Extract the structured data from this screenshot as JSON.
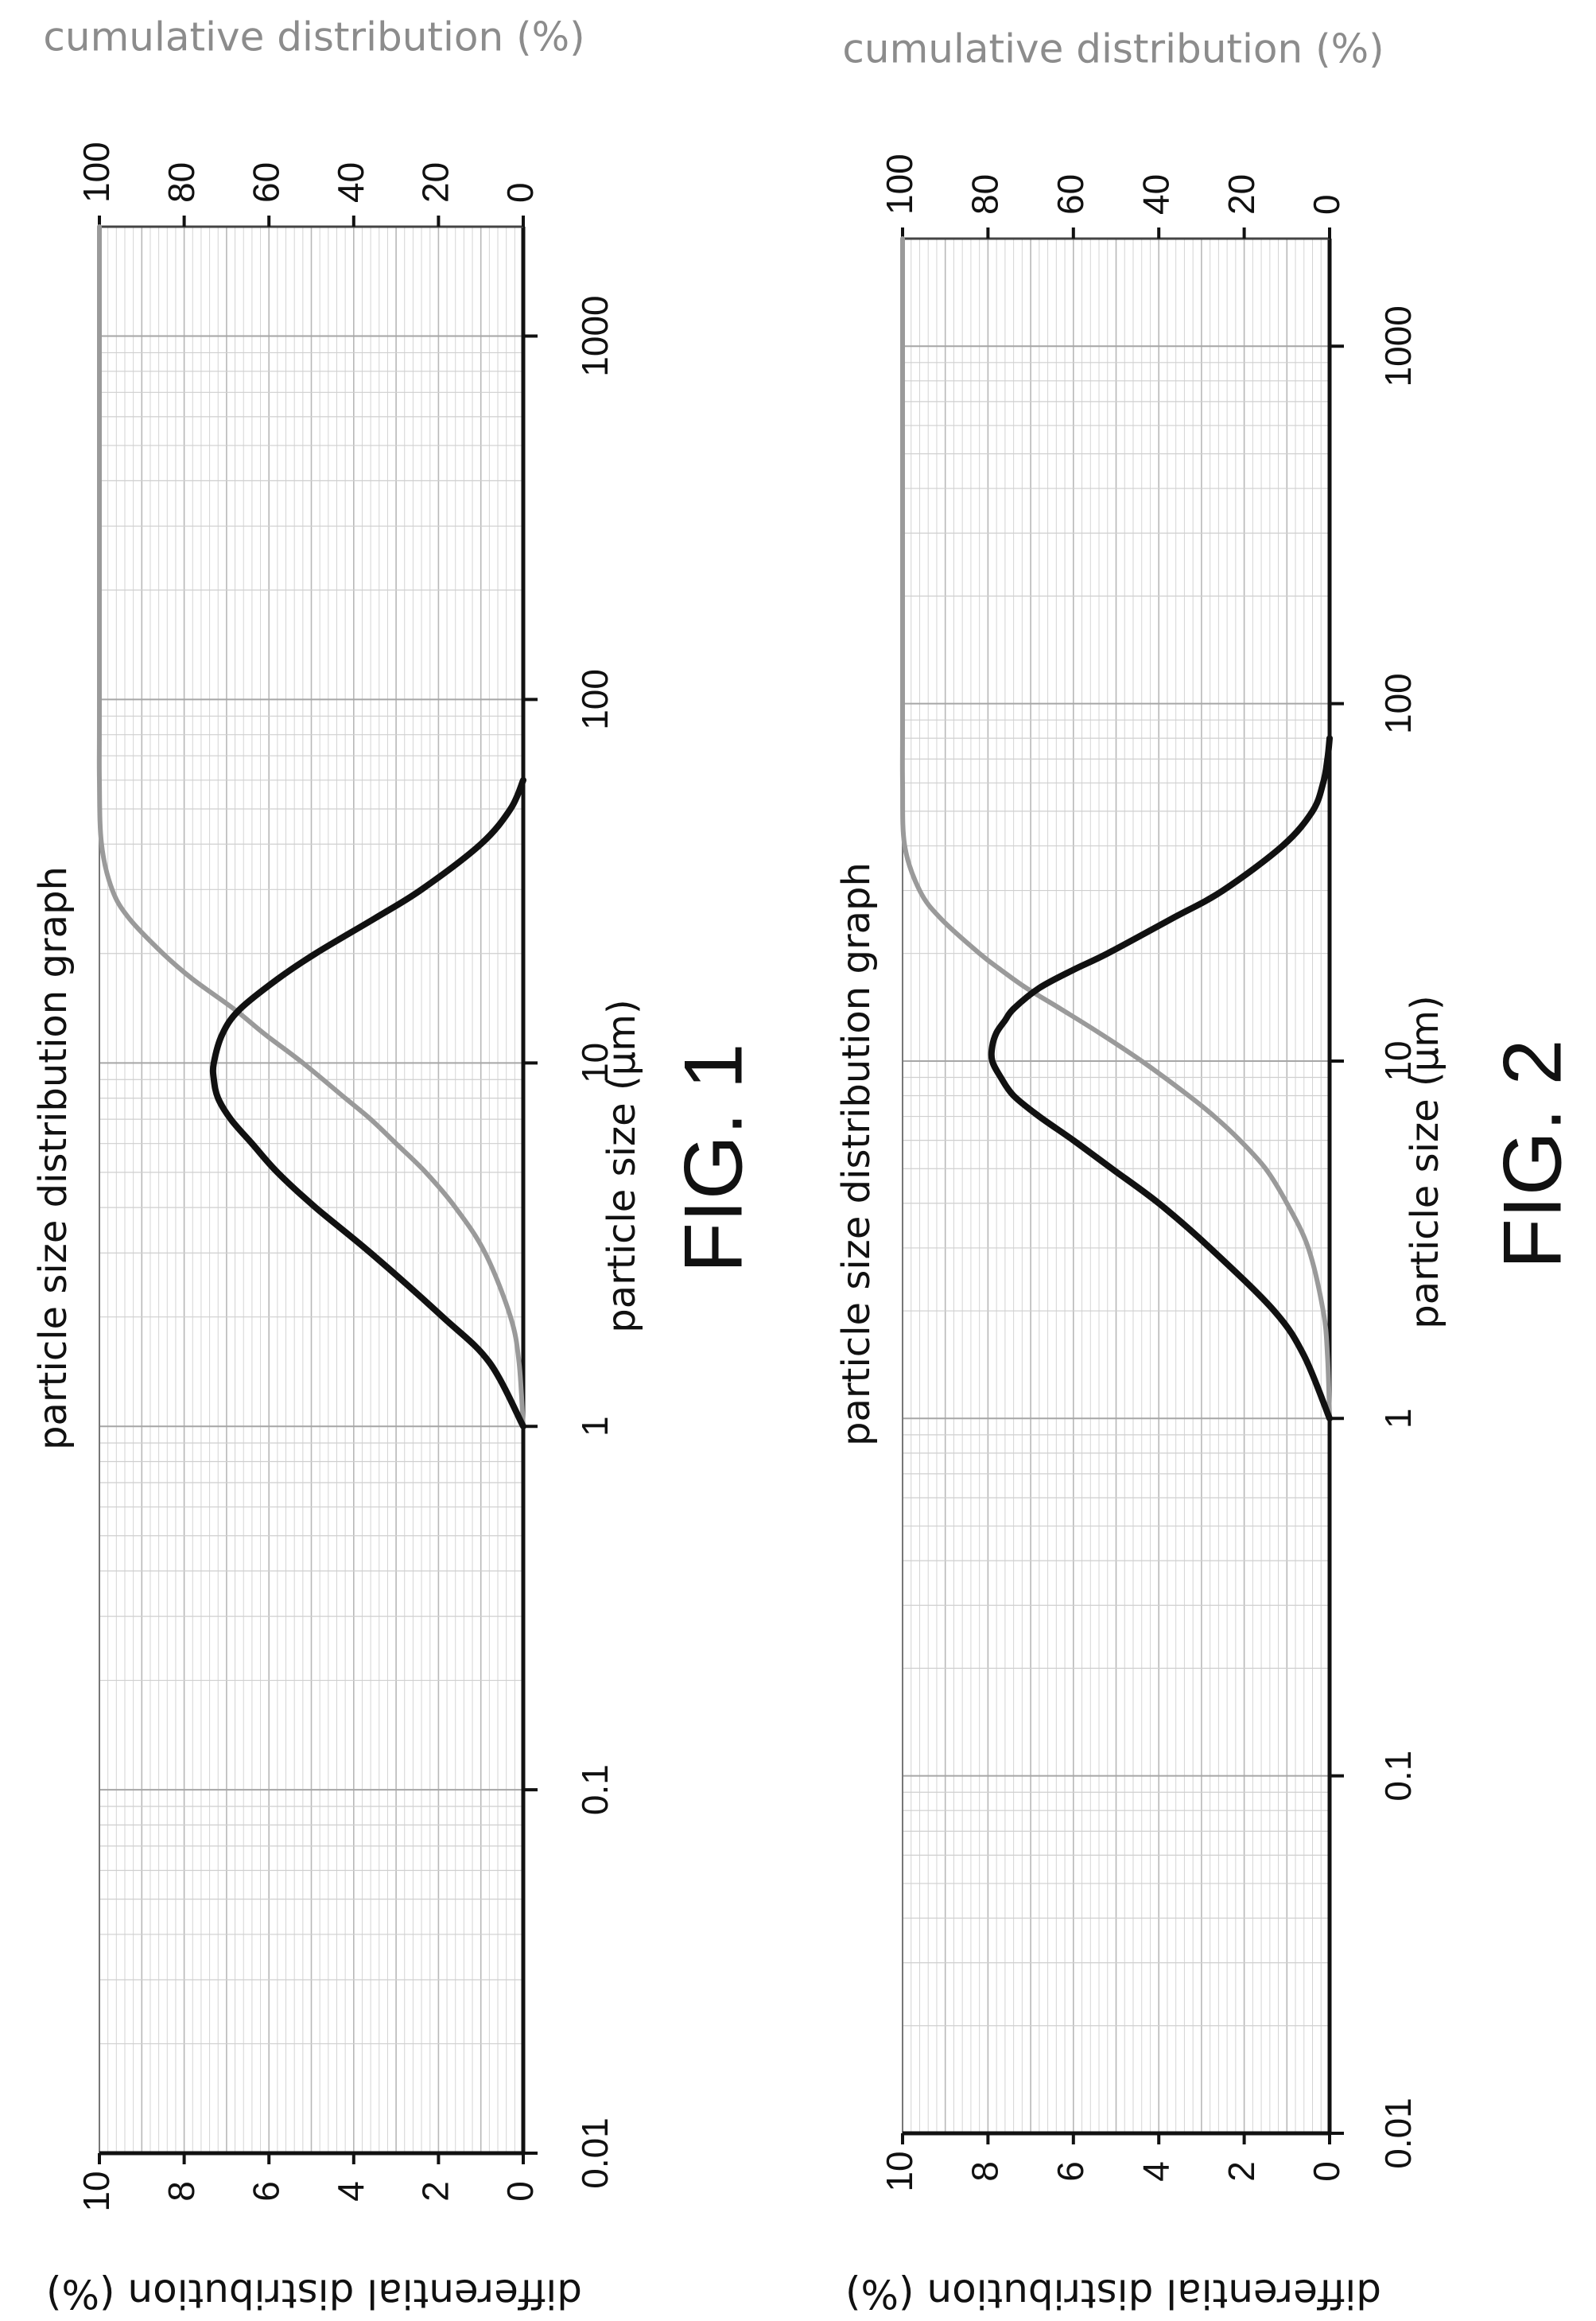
{
  "chart_data": [
    {
      "type": "line",
      "figure_label": "FIG. 1",
      "title": "particle size distribution graph",
      "xlabel": "particle size (µm)",
      "ylabel_left": "differential distribution (%)",
      "ylabel_right": "cumulative distribution (%)",
      "x_scale": "log",
      "xlim": [
        0.01,
        2000
      ],
      "x_ticks": [
        "0.01",
        "0.1",
        "1",
        "10",
        "100",
        "1000"
      ],
      "ylim_left": [
        0,
        10
      ],
      "y_ticks_left": [
        "0",
        "2",
        "4",
        "6",
        "8",
        "10"
      ],
      "ylim_right": [
        0,
        100
      ],
      "y_ticks_right": [
        "0",
        "20",
        "40",
        "60",
        "80",
        "100"
      ],
      "grid": true,
      "series": [
        {
          "axis": "left",
          "color": "#111111",
          "x": [
            1,
            1.5,
            2,
            3,
            4,
            5,
            6,
            7,
            8,
            9,
            10,
            12,
            14,
            17,
            20,
            25,
            30,
            40,
            50,
            60
          ],
          "y": [
            0,
            0.8,
            1.9,
            3.6,
            4.9,
            5.8,
            6.4,
            6.9,
            7.2,
            7.3,
            7.3,
            7.1,
            6.7,
            5.8,
            4.9,
            3.5,
            2.4,
            1.0,
            0.3,
            0
          ]
        },
        {
          "axis": "right",
          "color": "#9a9a9a",
          "x": [
            1,
            1.5,
            2,
            3,
            4,
            5,
            6,
            7,
            8,
            10,
            12,
            14,
            17,
            20,
            25,
            30,
            40,
            60,
            100,
            1000,
            2000
          ],
          "y": [
            0,
            1,
            3,
            9,
            16,
            23,
            30,
            36,
            42,
            52,
            61,
            68,
            78,
            85,
            93,
            97,
            99.5,
            100,
            100,
            100,
            100
          ]
        }
      ]
    },
    {
      "type": "line",
      "figure_label": "FIG. 2",
      "title": "particle size distribution graph",
      "xlabel": "particle size (µm)",
      "ylabel_left": "differential distribution (%)",
      "ylabel_right": "cumulative distribution (%)",
      "x_scale": "log",
      "xlim": [
        0.01,
        2000
      ],
      "x_ticks": [
        "0.01",
        "0.1",
        "1",
        "10",
        "100",
        "1000"
      ],
      "ylim_left": [
        0,
        10
      ],
      "y_ticks_left": [
        "0",
        "2",
        "4",
        "6",
        "8",
        "10"
      ],
      "ylim_right": [
        0,
        100
      ],
      "y_ticks_right": [
        "0",
        "20",
        "40",
        "60",
        "80",
        "100"
      ],
      "grid": true,
      "series": [
        {
          "axis": "left",
          "color": "#111111",
          "x": [
            1,
            1.5,
            2,
            3,
            4,
            5,
            6,
            7,
            8,
            9,
            10,
            11,
            12,
            13,
            14,
            16,
            18,
            20,
            25,
            30,
            40,
            50,
            60,
            70,
            80
          ],
          "y": [
            0,
            0.6,
            1.3,
            2.8,
            4.0,
            5.1,
            6.0,
            6.8,
            7.4,
            7.7,
            7.9,
            7.9,
            7.8,
            7.6,
            7.4,
            6.8,
            6.0,
            5.2,
            3.7,
            2.5,
            1.1,
            0.4,
            0.15,
            0.05,
            0
          ]
        },
        {
          "axis": "right",
          "color": "#9a9a9a",
          "x": [
            1,
            1.5,
            2,
            3,
            4,
            5,
            6,
            7,
            8,
            10,
            12,
            14,
            16,
            18,
            20,
            25,
            30,
            40,
            60,
            100,
            1000,
            2000
          ],
          "y": [
            0,
            0.5,
            1.5,
            5,
            10,
            15,
            21,
            27,
            33,
            44,
            54,
            63,
            71,
            77,
            82,
            91,
            96,
            99.5,
            100,
            100,
            100,
            100
          ]
        }
      ]
    }
  ]
}
